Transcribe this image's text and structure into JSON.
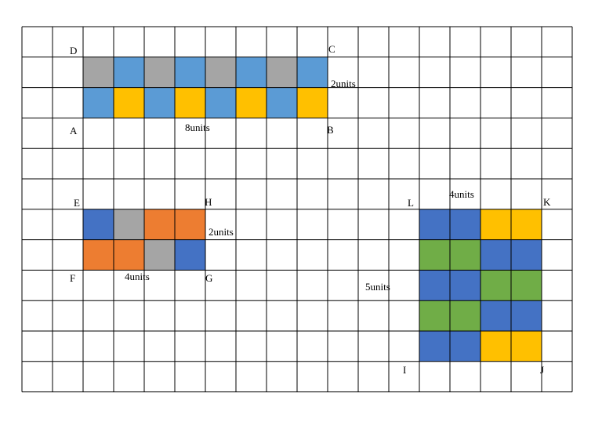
{
  "colors": {
    "gray": "#A5A5A5",
    "light_blue": "#5B9BD5",
    "yellow": "#FFC000",
    "dark_blue": "#4472C4",
    "orange": "#ED7D31",
    "green": "#70AD47",
    "grid": "#000000"
  },
  "grid": {
    "columns": 18,
    "rows": 12
  },
  "rect_abcd": {
    "vertices": {
      "A": "A",
      "B": "B",
      "C": "C",
      "D": "D"
    },
    "width_label": "8units",
    "height_label": "2units",
    "tile_rows": [
      [
        "gray",
        "light_blue",
        "gray",
        "light_blue",
        "gray",
        "light_blue",
        "gray",
        "light_blue"
      ],
      [
        "light_blue",
        "yellow",
        "light_blue",
        "yellow",
        "light_blue",
        "yellow",
        "light_blue",
        "yellow"
      ]
    ]
  },
  "rect_efgh": {
    "vertices": {
      "E": "E",
      "F": "F",
      "G": "G",
      "H": "H"
    },
    "width_label": "4units",
    "height_label": "2units",
    "tile_rows": [
      [
        "dark_blue",
        "gray",
        "orange",
        "orange"
      ],
      [
        "orange",
        "orange",
        "gray",
        "dark_blue"
      ]
    ]
  },
  "rect_ijkl": {
    "vertices": {
      "I": "I",
      "J": "J",
      "K": "K",
      "L": "L"
    },
    "width_label": "4units",
    "height_label": "5units",
    "tile_rows": [
      [
        "dark_blue",
        "dark_blue",
        "yellow",
        "yellow"
      ],
      [
        "green",
        "green",
        "dark_blue",
        "dark_blue"
      ],
      [
        "dark_blue",
        "dark_blue",
        "green",
        "green"
      ],
      [
        "green",
        "green",
        "dark_blue",
        "dark_blue"
      ],
      [
        "dark_blue",
        "dark_blue",
        "yellow",
        "yellow"
      ]
    ]
  }
}
